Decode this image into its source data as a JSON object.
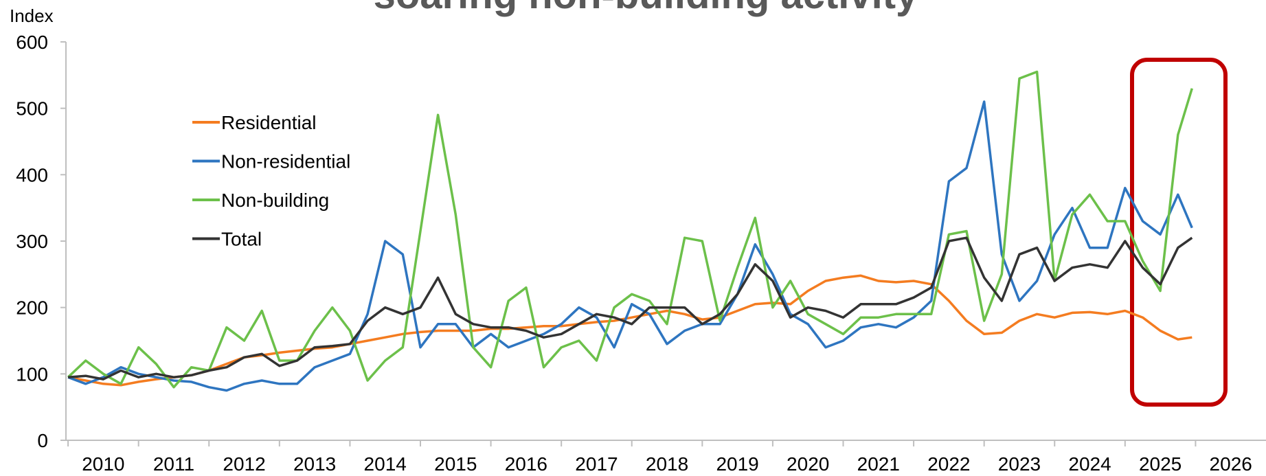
{
  "chart_data": {
    "type": "line",
    "title": "soaring non-building activity",
    "y_label": "Index",
    "x": [
      2010,
      2010.25,
      2010.5,
      2010.75,
      2011,
      2011.25,
      2011.5,
      2011.75,
      2012,
      2012.25,
      2012.5,
      2012.75,
      2013,
      2013.25,
      2013.5,
      2013.75,
      2014,
      2014.25,
      2014.5,
      2014.75,
      2015,
      2015.25,
      2015.5,
      2015.75,
      2016,
      2016.25,
      2016.5,
      2016.75,
      2017,
      2017.25,
      2017.5,
      2017.75,
      2018,
      2018.25,
      2018.5,
      2018.75,
      2019,
      2019.25,
      2019.5,
      2019.75,
      2020,
      2020.25,
      2020.5,
      2020.75,
      2021,
      2021.25,
      2021.5,
      2021.75,
      2022,
      2022.25,
      2022.5,
      2022.75,
      2023,
      2023.25,
      2023.5,
      2023.75,
      2024,
      2024.25,
      2024.5,
      2024.75,
      2025,
      2025.25,
      2025.5,
      2025.75,
      2025.95
    ],
    "series": [
      {
        "name": "Residential",
        "color": "#f47c20",
        "values": [
          95,
          90,
          85,
          83,
          88,
          92,
          95,
          98,
          105,
          115,
          125,
          128,
          132,
          135,
          138,
          140,
          145,
          150,
          155,
          160,
          163,
          165,
          165,
          165,
          168,
          168,
          170,
          172,
          172,
          175,
          178,
          180,
          185,
          190,
          195,
          190,
          182,
          185,
          195,
          205,
          207,
          205,
          225,
          240,
          245,
          248,
          240,
          238,
          240,
          235,
          210,
          180,
          160,
          162,
          180,
          190,
          185,
          192,
          193,
          190,
          195,
          185,
          165,
          152,
          155
        ]
      },
      {
        "name": "Non-residential",
        "color": "#2e75c0",
        "values": [
          95,
          85,
          95,
          110,
          100,
          95,
          90,
          88,
          80,
          75,
          85,
          90,
          85,
          85,
          110,
          120,
          130,
          190,
          300,
          280,
          140,
          175,
          175,
          140,
          160,
          140,
          150,
          160,
          175,
          200,
          185,
          140,
          205,
          190,
          145,
          165,
          175,
          175,
          220,
          295,
          250,
          190,
          175,
          140,
          150,
          170,
          175,
          170,
          185,
          210,
          390,
          410,
          510,
          280,
          210,
          240,
          310,
          350,
          290,
          290,
          380,
          330,
          310,
          370,
          320
        ]
      },
      {
        "name": "Non-building",
        "color": "#6cc04a",
        "values": [
          95,
          120,
          100,
          85,
          140,
          115,
          80,
          110,
          105,
          170,
          150,
          195,
          120,
          120,
          165,
          200,
          165,
          90,
          120,
          140,
          315,
          490,
          340,
          140,
          110,
          210,
          230,
          110,
          140,
          150,
          120,
          200,
          220,
          210,
          175,
          305,
          300,
          180,
          260,
          335,
          200,
          240,
          190,
          175,
          160,
          185,
          185,
          190,
          190,
          190,
          310,
          315,
          180,
          250,
          545,
          555,
          240,
          340,
          370,
          330,
          330,
          270,
          225,
          460,
          530
        ]
      },
      {
        "name": "Total",
        "color": "#333333",
        "values": [
          95,
          97,
          92,
          105,
          95,
          100,
          95,
          98,
          105,
          110,
          125,
          130,
          112,
          120,
          140,
          142,
          145,
          180,
          200,
          190,
          200,
          245,
          190,
          175,
          170,
          170,
          165,
          155,
          160,
          175,
          190,
          185,
          175,
          200,
          200,
          200,
          175,
          190,
          220,
          265,
          240,
          185,
          200,
          195,
          185,
          205,
          205,
          205,
          215,
          230,
          300,
          305,
          245,
          210,
          280,
          290,
          240,
          260,
          265,
          260,
          300,
          260,
          235,
          290,
          305
        ]
      }
    ],
    "xlim": [
      2009.97,
      2027
    ],
    "xticks": [
      2010,
      2011,
      2012,
      2013,
      2014,
      2015,
      2016,
      2017,
      2018,
      2019,
      2020,
      2021,
      2022,
      2023,
      2024,
      2025,
      2026
    ],
    "ylim": [
      0,
      600
    ],
    "yticks": [
      0,
      100,
      200,
      300,
      400,
      500,
      600
    ],
    "legend": "upper left"
  }
}
